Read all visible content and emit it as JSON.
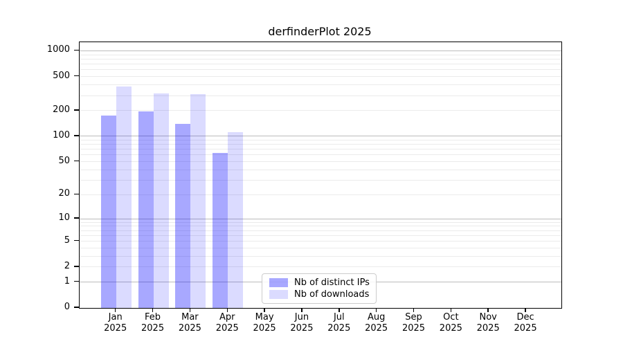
{
  "title": "derfinderPlot 2025",
  "legend": {
    "items": [
      {
        "label": "Nb of distinct IPs",
        "color": "rgba(0,0,255,0.34)",
        "color_hex": "#a8a8fa"
      },
      {
        "label": "Nb of downloads",
        "color": "rgba(0,0,255,0.14)",
        "color_hex": "#dcdcfa"
      }
    ]
  },
  "colors": {
    "distinct_ips_fill": "rgba(0,0,255,0.34)",
    "downloads_fill": "rgba(0,0,255,0.14)",
    "major_grid": "#bbbbbb",
    "minor_grid": "#ebebeb",
    "spine": "#000000",
    "background": "#ffffff"
  },
  "chart_data": {
    "type": "bar",
    "title": "derfinderPlot 2025",
    "xlabel": "",
    "ylabel": "",
    "y_scale": "log1p",
    "ylim": [
      0,
      1260
    ],
    "grid": true,
    "legend_position": "lower-center inside plot",
    "categories": [
      "Jan 2025",
      "Feb 2025",
      "Mar 2025",
      "Apr 2025",
      "May 2025",
      "Jun 2025",
      "Jul 2025",
      "Aug 2025",
      "Sep 2025",
      "Oct 2025",
      "Nov 2025",
      "Dec 2025"
    ],
    "x_tick_labels": [
      {
        "line1": "Jan",
        "line2": "2025"
      },
      {
        "line1": "Feb",
        "line2": "2025"
      },
      {
        "line1": "Mar",
        "line2": "2025"
      },
      {
        "line1": "Apr",
        "line2": "2025"
      },
      {
        "line1": "May",
        "line2": "2025"
      },
      {
        "line1": "Jun",
        "line2": "2025"
      },
      {
        "line1": "Jul",
        "line2": "2025"
      },
      {
        "line1": "Aug",
        "line2": "2025"
      },
      {
        "line1": "Sep",
        "line2": "2025"
      },
      {
        "line1": "Oct",
        "line2": "2025"
      },
      {
        "line1": "Nov",
        "line2": "2025"
      },
      {
        "line1": "Dec",
        "line2": "2025"
      }
    ],
    "series": [
      {
        "name": "Nb of distinct IPs",
        "color": "rgba(0,0,255,0.34)",
        "values": [
          175,
          195,
          140,
          63,
          0,
          0,
          0,
          0,
          0,
          0,
          0,
          0
        ]
      },
      {
        "name": "Nb of downloads",
        "color": "rgba(0,0,255,0.14)",
        "values": [
          385,
          320,
          310,
          112,
          0,
          0,
          0,
          0,
          0,
          0,
          0,
          0
        ]
      }
    ],
    "y_tick_labels": [
      0,
      1,
      2,
      5,
      10,
      20,
      50,
      100,
      200,
      500,
      1000
    ],
    "y_major_gridlines": [
      1,
      10,
      100,
      1000
    ],
    "y_minor_gridlines": [
      2,
      3,
      4,
      5,
      6,
      7,
      8,
      9,
      20,
      30,
      40,
      50,
      60,
      70,
      80,
      90,
      200,
      300,
      400,
      500,
      600,
      700,
      800,
      900
    ]
  }
}
